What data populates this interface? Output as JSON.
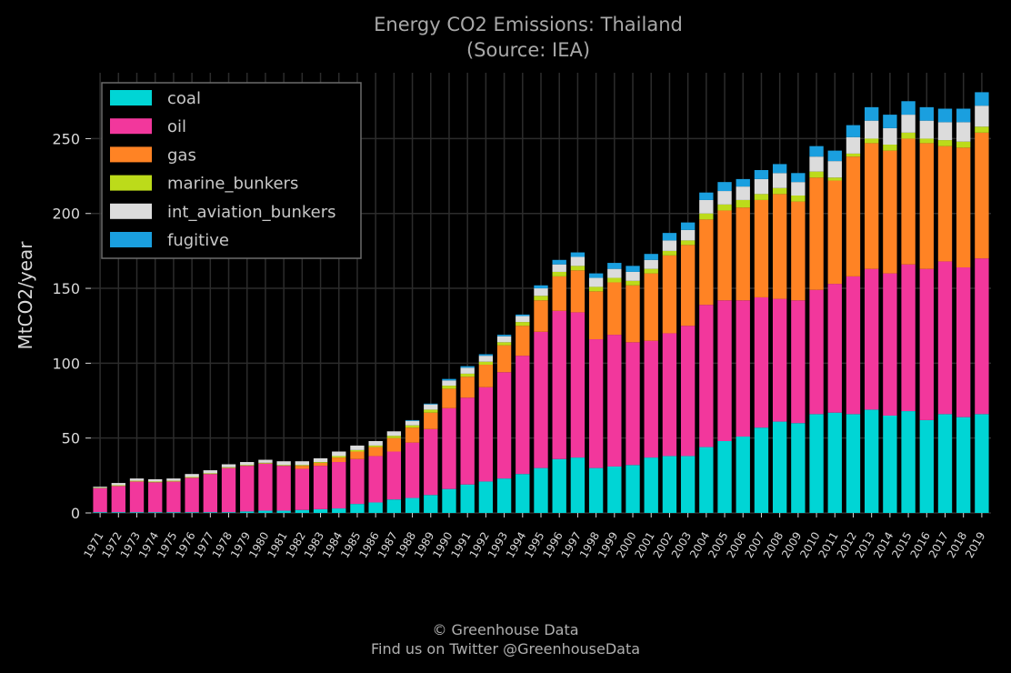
{
  "chart_data": {
    "type": "bar",
    "stacked": true,
    "title": "Energy CO2 Emissions: Thailand",
    "subtitle": "(Source: IEA)",
    "xlabel": "",
    "ylabel": "MtCO2/year",
    "ylim": [
      0,
      294
    ],
    "yticks": [
      "0",
      "50",
      "100",
      "150",
      "200",
      "250"
    ],
    "grid": true,
    "legend_position": "top-left",
    "categories": [
      "1971",
      "1972",
      "1973",
      "1974",
      "1975",
      "1976",
      "1977",
      "1978",
      "1979",
      "1980",
      "1981",
      "1982",
      "1983",
      "1984",
      "1985",
      "1986",
      "1987",
      "1988",
      "1989",
      "1990",
      "1991",
      "1992",
      "1993",
      "1994",
      "1995",
      "1996",
      "1997",
      "1998",
      "1999",
      "2000",
      "2001",
      "2002",
      "2003",
      "2004",
      "2005",
      "2006",
      "2007",
      "2008",
      "2009",
      "2010",
      "2011",
      "2012",
      "2013",
      "2014",
      "2015",
      "2016",
      "2017",
      "2018",
      "2019"
    ],
    "series": [
      {
        "name": "coal",
        "color": "#00d5d5",
        "values": [
          0.5,
          0.5,
          0.5,
          0.5,
          0.5,
          0.5,
          0.5,
          0.5,
          1,
          1.5,
          1.5,
          2,
          2.5,
          3,
          6,
          7,
          9,
          10,
          12,
          16,
          19,
          21,
          23,
          26,
          30,
          36,
          37,
          30,
          31,
          32,
          37,
          38,
          38,
          44,
          48,
          51,
          57,
          61,
          60,
          66,
          67,
          66,
          69,
          65,
          68,
          62,
          66,
          64,
          66
        ]
      },
      {
        "name": "oil",
        "color": "#f2379c",
        "values": [
          16,
          17.5,
          20.5,
          20,
          20.5,
          23,
          25.5,
          29.5,
          30.5,
          31.5,
          30,
          27.5,
          29,
          31,
          30,
          31,
          32,
          37,
          44,
          54,
          58,
          63,
          71,
          79,
          91,
          99,
          97,
          86,
          88,
          82,
          78,
          82,
          87,
          95,
          94,
          91,
          87,
          82,
          82,
          83,
          86,
          92,
          94,
          95,
          98,
          101,
          102,
          100,
          104
        ]
      },
      {
        "name": "gas",
        "color": "#ff8324",
        "values": [
          0,
          0,
          0,
          0,
          0,
          0,
          0,
          0,
          0,
          0,
          0,
          2,
          2,
          3,
          5,
          6,
          9,
          10,
          11,
          13,
          14,
          15,
          18,
          20,
          21,
          23,
          28,
          32,
          35,
          38,
          45,
          52,
          54,
          57,
          60,
          62,
          65,
          70,
          66,
          75,
          69,
          80,
          84,
          82,
          84,
          84,
          77,
          80,
          84
        ]
      },
      {
        "name": "marine_bunkers",
        "color": "#bcdb1a",
        "values": [
          0.3,
          0.5,
          0.5,
          0.5,
          0.5,
          0.5,
          0.5,
          0.5,
          0.5,
          0.5,
          0.5,
          0.5,
          0.5,
          1,
          1,
          1,
          1.5,
          1.5,
          2,
          2,
          2,
          2,
          2,
          2.5,
          3,
          3,
          3,
          3,
          3,
          3,
          3,
          3,
          3,
          4,
          4,
          5,
          4,
          4,
          4,
          4,
          2,
          2,
          3,
          4,
          4,
          3,
          4,
          4,
          4
        ]
      },
      {
        "name": "int_aviation_bunkers",
        "color": "#dcdcdc",
        "values": [
          0.7,
          1.5,
          1.5,
          1.5,
          1.5,
          2,
          2,
          2,
          2,
          2,
          2.5,
          2.5,
          2.5,
          3,
          3,
          3,
          3,
          3,
          3.5,
          3.5,
          4,
          4,
          4,
          4,
          5,
          5,
          6,
          6,
          6,
          6,
          6,
          7,
          7,
          9,
          9,
          9,
          10,
          10,
          9,
          10,
          11,
          11,
          12,
          11,
          12,
          12,
          12,
          13,
          14
        ]
      },
      {
        "name": "fugitive",
        "color": "#1a9fdf",
        "values": [
          0,
          0,
          0,
          0,
          0,
          0,
          0,
          0,
          0,
          0,
          0,
          0,
          0,
          0,
          0,
          0,
          0,
          0.5,
          0.5,
          1,
          1,
          1,
          1,
          1,
          2,
          3,
          3,
          3,
          4,
          4,
          4,
          5,
          5,
          5,
          6,
          5,
          6,
          6,
          6,
          7,
          7,
          8,
          9,
          9,
          9,
          9,
          9,
          9,
          9
        ]
      }
    ]
  },
  "footer": {
    "credit": "© Greenhouse Data",
    "twitter": "Find us on Twitter @GreenhouseData"
  }
}
